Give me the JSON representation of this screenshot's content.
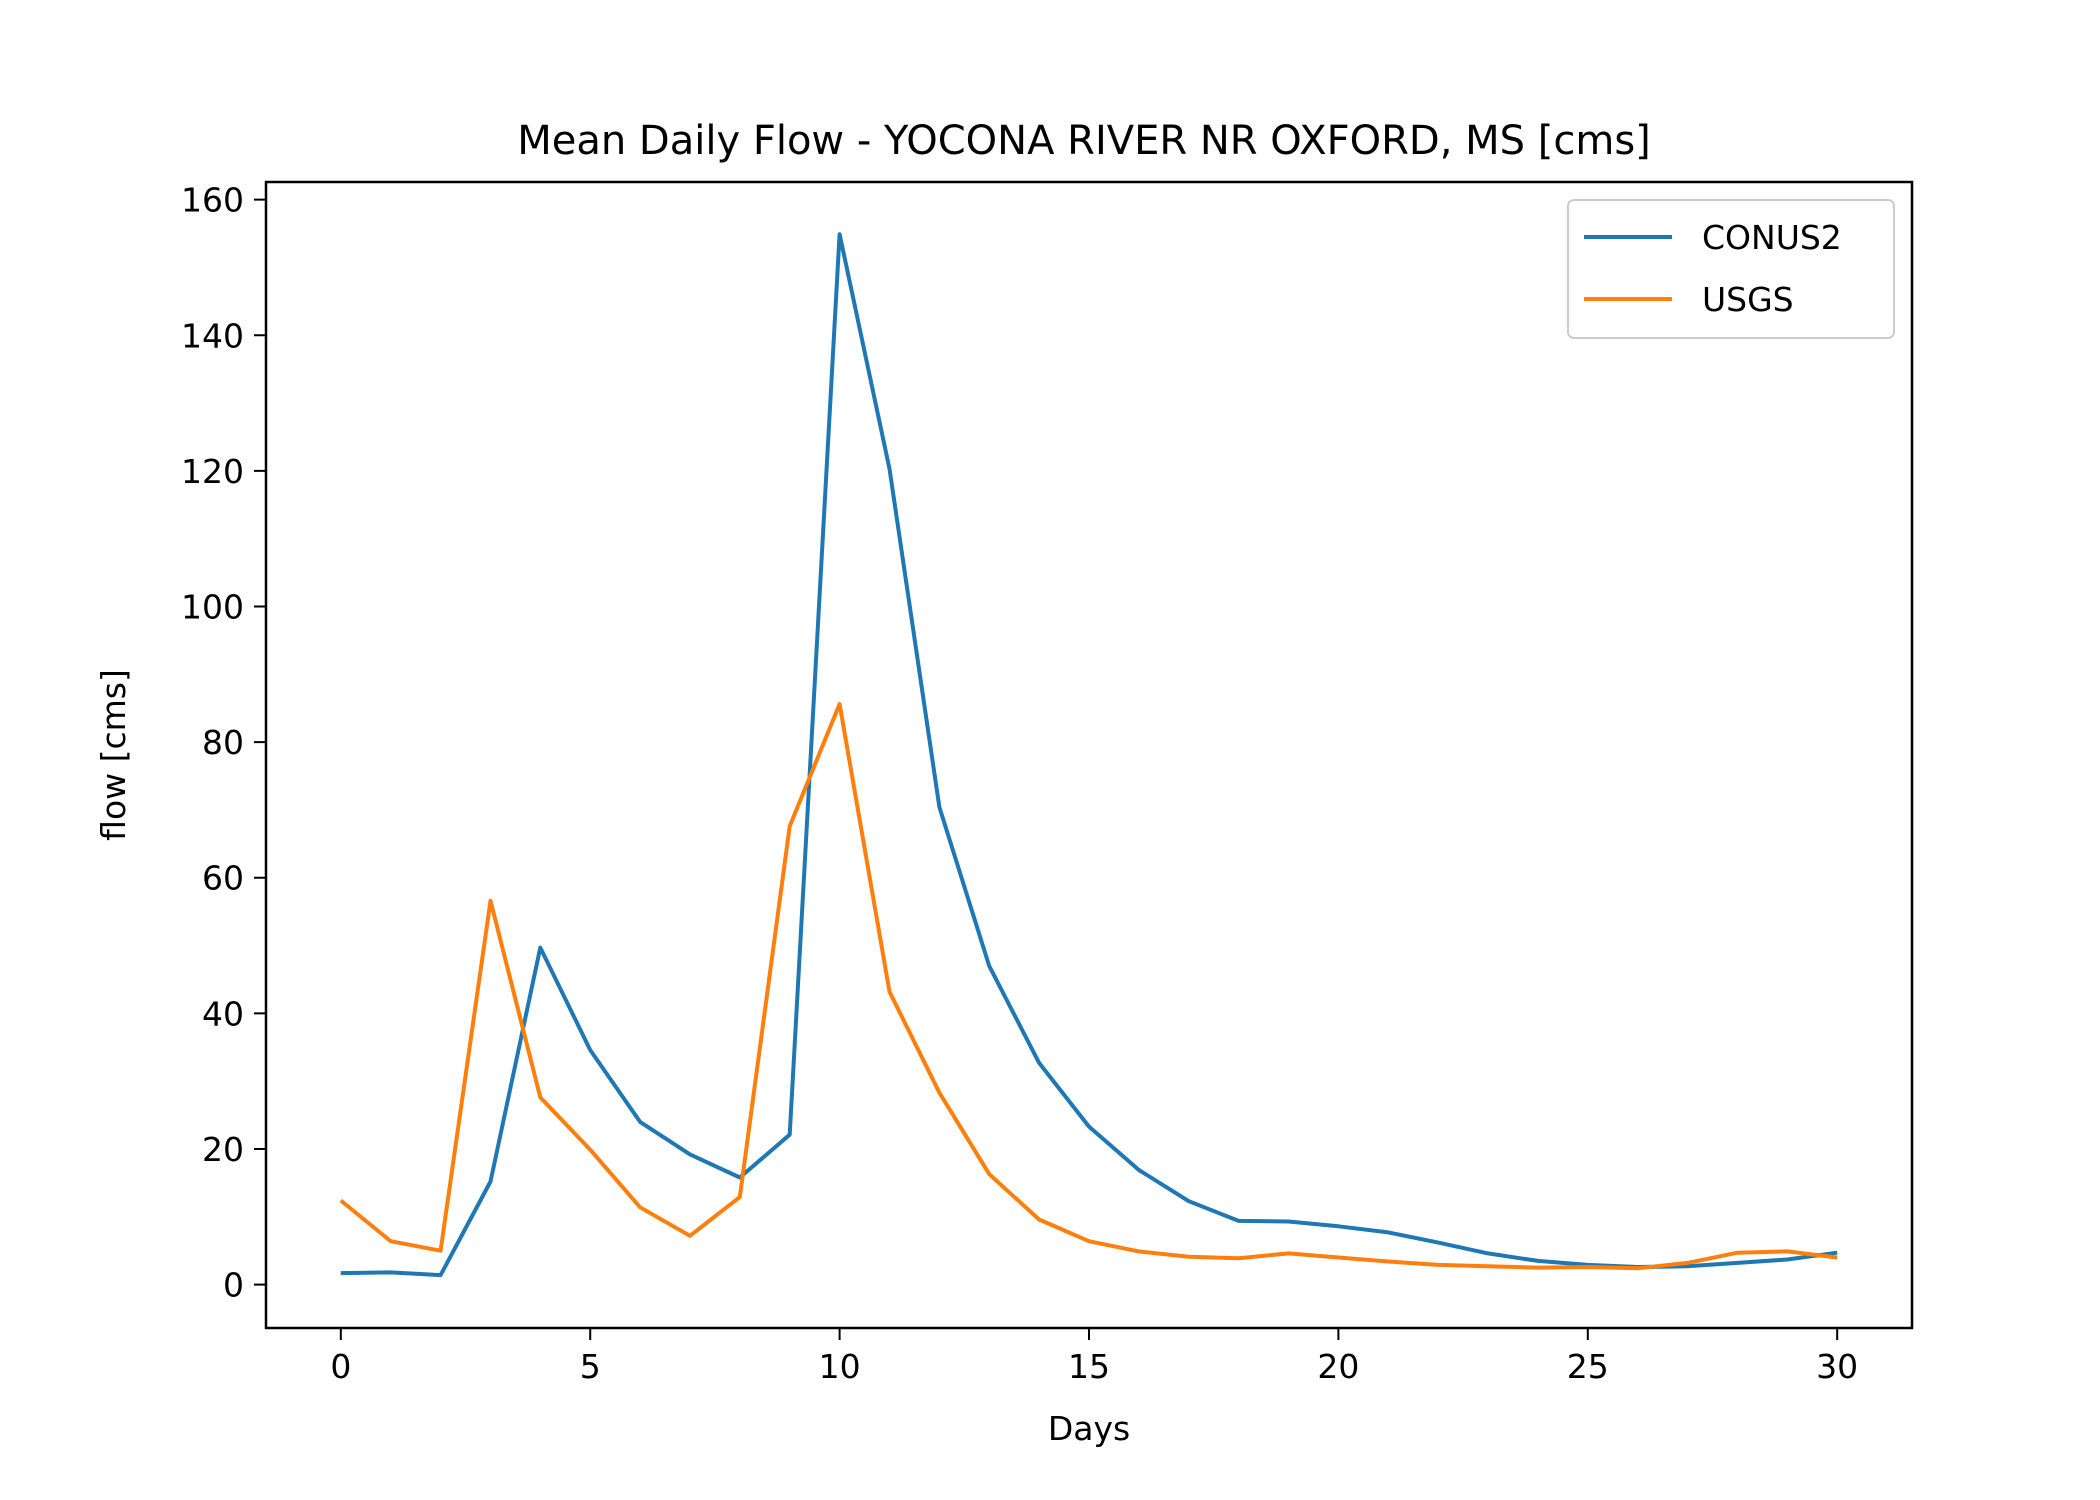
{
  "chart_data": {
    "type": "line",
    "title": "Mean Daily Flow - YOCONA RIVER NR OXFORD, MS [cms]",
    "xlabel": "Days",
    "ylabel": "flow [cms]",
    "xlim": [
      -1.5,
      31.5
    ],
    "ylim": [
      -6.4,
      162.6
    ],
    "xticks": [
      0,
      5,
      10,
      15,
      20,
      25,
      30
    ],
    "yticks": [
      0,
      20,
      40,
      60,
      80,
      100,
      120,
      140,
      160
    ],
    "grid": false,
    "legend_position": "top-right",
    "x": [
      0,
      1,
      2,
      3,
      4,
      5,
      6,
      7,
      8,
      9,
      10,
      11,
      12,
      13,
      14,
      15,
      16,
      17,
      18,
      19,
      20,
      21,
      22,
      23,
      24,
      25,
      26,
      27,
      28,
      29,
      30
    ],
    "series": [
      {
        "name": "CONUS2",
        "color": "#1f77b4",
        "values": [
          1.7,
          1.8,
          1.4,
          15.2,
          49.7,
          34.6,
          24.0,
          19.2,
          15.8,
          22.1,
          154.9,
          120.3,
          70.4,
          47.0,
          32.7,
          23.3,
          16.9,
          12.3,
          9.4,
          9.3,
          8.6,
          7.7,
          6.2,
          4.6,
          3.5,
          2.9,
          2.6,
          2.7,
          3.2,
          3.7,
          4.7
        ]
      },
      {
        "name": "USGS",
        "color": "#ff7f0e",
        "values": [
          12.4,
          6.4,
          5.0,
          56.6,
          27.6,
          19.9,
          11.4,
          7.2,
          12.9,
          67.6,
          85.6,
          43.2,
          28.3,
          16.3,
          9.6,
          6.4,
          4.9,
          4.1,
          3.9,
          4.6,
          4.0,
          3.4,
          2.9,
          2.7,
          2.5,
          2.6,
          2.4,
          3.2,
          4.7,
          4.9,
          4.0
        ]
      }
    ]
  }
}
